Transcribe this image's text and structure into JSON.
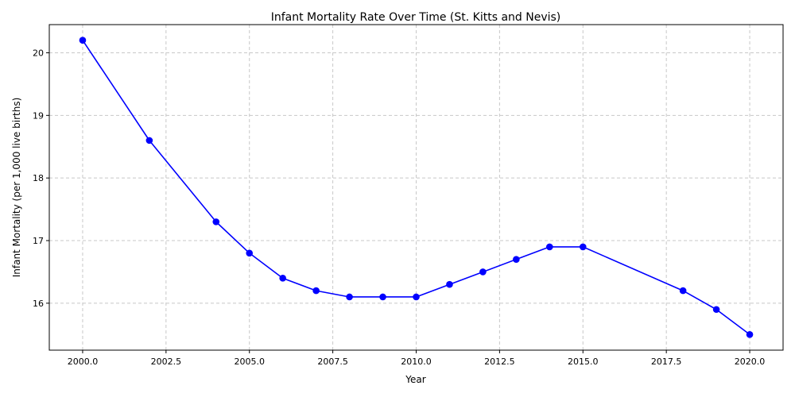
{
  "chart_data": {
    "type": "line",
    "title": "Infant Mortality Rate Over Time (St. Kitts and Nevis)",
    "xlabel": "Year",
    "ylabel": "Infant Mortality (per 1,000 live births)",
    "xlim": [
      1999.0,
      2021.0
    ],
    "ylim": [
      15.25,
      20.45
    ],
    "x_ticks": [
      2000.0,
      2002.5,
      2005.0,
      2007.5,
      2010.0,
      2012.5,
      2015.0,
      2017.5,
      2020.0
    ],
    "x_tick_labels": [
      "2000.0",
      "2002.5",
      "2005.0",
      "2007.5",
      "2010.0",
      "2012.5",
      "2015.0",
      "2017.5",
      "2020.0"
    ],
    "y_ticks": [
      16,
      17,
      18,
      19,
      20
    ],
    "y_tick_labels": [
      "16",
      "17",
      "18",
      "19",
      "20"
    ],
    "grid": true,
    "series": [
      {
        "color": "#0000ff",
        "marker": "circle",
        "points": [
          {
            "x": 2000,
            "y": 20.2
          },
          {
            "x": 2002,
            "y": 18.6
          },
          {
            "x": 2004,
            "y": 17.3
          },
          {
            "x": 2005,
            "y": 16.8
          },
          {
            "x": 2006,
            "y": 16.4
          },
          {
            "x": 2007,
            "y": 16.2
          },
          {
            "x": 2008,
            "y": 16.1
          },
          {
            "x": 2009,
            "y": 16.1
          },
          {
            "x": 2010,
            "y": 16.1
          },
          {
            "x": 2011,
            "y": 16.3
          },
          {
            "x": 2012,
            "y": 16.5
          },
          {
            "x": 2013,
            "y": 16.7
          },
          {
            "x": 2014,
            "y": 16.9
          },
          {
            "x": 2015,
            "y": 16.9
          },
          {
            "x": 2018,
            "y": 16.2
          },
          {
            "x": 2019,
            "y": 15.9
          },
          {
            "x": 2020,
            "y": 15.5
          }
        ]
      }
    ]
  }
}
